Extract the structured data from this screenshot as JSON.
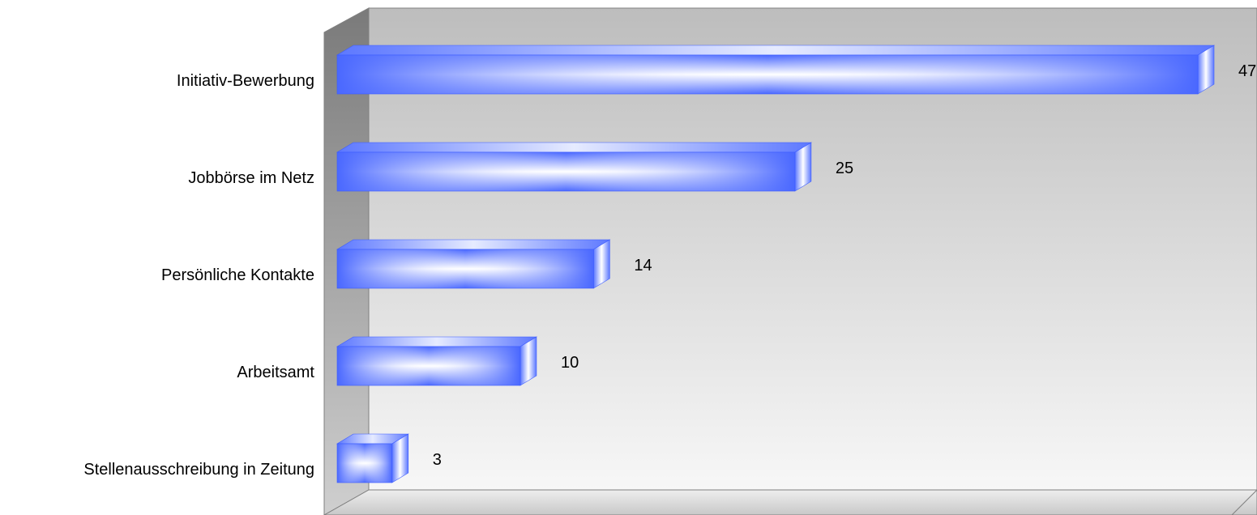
{
  "chart_data": {
    "type": "bar",
    "orientation": "horizontal",
    "style": "3d",
    "categories": [
      "Initiativ-Bewerbung",
      "Jobbörse im Netz",
      "Persönliche Kontakte",
      "Arbeitsamt",
      "Stellenausschreibung in Zeitung"
    ],
    "values": [
      47,
      25,
      14,
      10,
      3
    ],
    "value_labels": [
      "47",
      "25",
      "14",
      "10",
      "3"
    ],
    "xlim": [
      0,
      50
    ],
    "grid": false,
    "legend": "none",
    "title": "",
    "xlabel": "",
    "ylabel": "",
    "colors": {
      "bar_face": "#4f6fff",
      "bar_highlight": "#ffffff",
      "bar_top": "#7f97ff",
      "bar_side": "#5f7bff",
      "back_wall": "#c4c4c4",
      "side_wall": "#8c8c8c",
      "floor": "#d9d9d9"
    }
  }
}
